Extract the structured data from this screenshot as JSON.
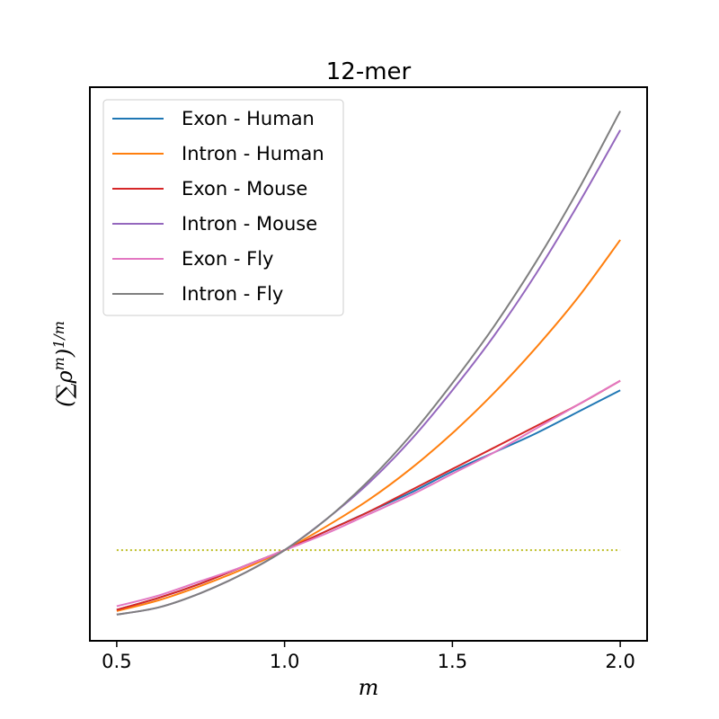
{
  "chart_data": {
    "type": "line",
    "title": "12-mer",
    "xlabel": "m",
    "ylabel": "(∑ρ^m)^{1/m}",
    "ylabel_main": "(∑ρ",
    "ylabel_sup1": "m",
    "ylabel_close": ")",
    "ylabel_sup2": "1/m",
    "xlim": [
      0.42,
      2.08
    ],
    "ylim": [
      -0.16,
      2.16
    ],
    "y_ticks_shown": false,
    "x_ticks": [
      0.5,
      1.0,
      1.5,
      2.0
    ],
    "x_tick_labels": [
      "0.5",
      "1.0",
      "1.5",
      "2.0"
    ],
    "grid": false,
    "legend_position": "top-left",
    "reference_line": {
      "y": 0.22,
      "style": "dotted",
      "color": "#bcbd22"
    },
    "x": [
      0.5,
      0.625,
      0.75,
      0.875,
      1.0,
      1.125,
      1.25,
      1.375,
      1.5,
      1.625,
      1.75,
      1.875,
      2.0
    ],
    "series": [
      {
        "name": "Exon - Human",
        "color": "#1f77b4",
        "values": [
          -0.03,
          0.02,
          0.08,
          0.15,
          0.22,
          0.3,
          0.38,
          0.46,
          0.55,
          0.63,
          0.71,
          0.8,
          0.89
        ]
      },
      {
        "name": "Intron - Human",
        "color": "#ff7f0e",
        "values": [
          -0.035,
          0.01,
          0.07,
          0.14,
          0.22,
          0.32,
          0.43,
          0.56,
          0.71,
          0.88,
          1.07,
          1.28,
          1.52
        ]
      },
      {
        "name": "Exon - Mouse",
        "color": "#d62728",
        "values": [
          -0.03,
          0.02,
          0.08,
          0.15,
          0.22,
          0.3,
          0.38,
          0.47,
          0.56,
          0.65,
          0.74,
          0.83,
          0.93
        ]
      },
      {
        "name": "Intron - Mouse",
        "color": "#9467bd",
        "values": [
          -0.05,
          -0.02,
          0.04,
          0.12,
          0.22,
          0.35,
          0.5,
          0.68,
          0.89,
          1.12,
          1.38,
          1.67,
          1.98
        ]
      },
      {
        "name": "Exon - Fly",
        "color": "#e377c2",
        "values": [
          -0.015,
          0.03,
          0.09,
          0.15,
          0.22,
          0.29,
          0.37,
          0.45,
          0.54,
          0.63,
          0.73,
          0.83,
          0.93
        ]
      },
      {
        "name": "Intron - Fly",
        "color": "#7f7f7f",
        "values": [
          -0.05,
          -0.02,
          0.04,
          0.12,
          0.22,
          0.35,
          0.51,
          0.7,
          0.92,
          1.16,
          1.43,
          1.73,
          2.06
        ]
      }
    ]
  }
}
